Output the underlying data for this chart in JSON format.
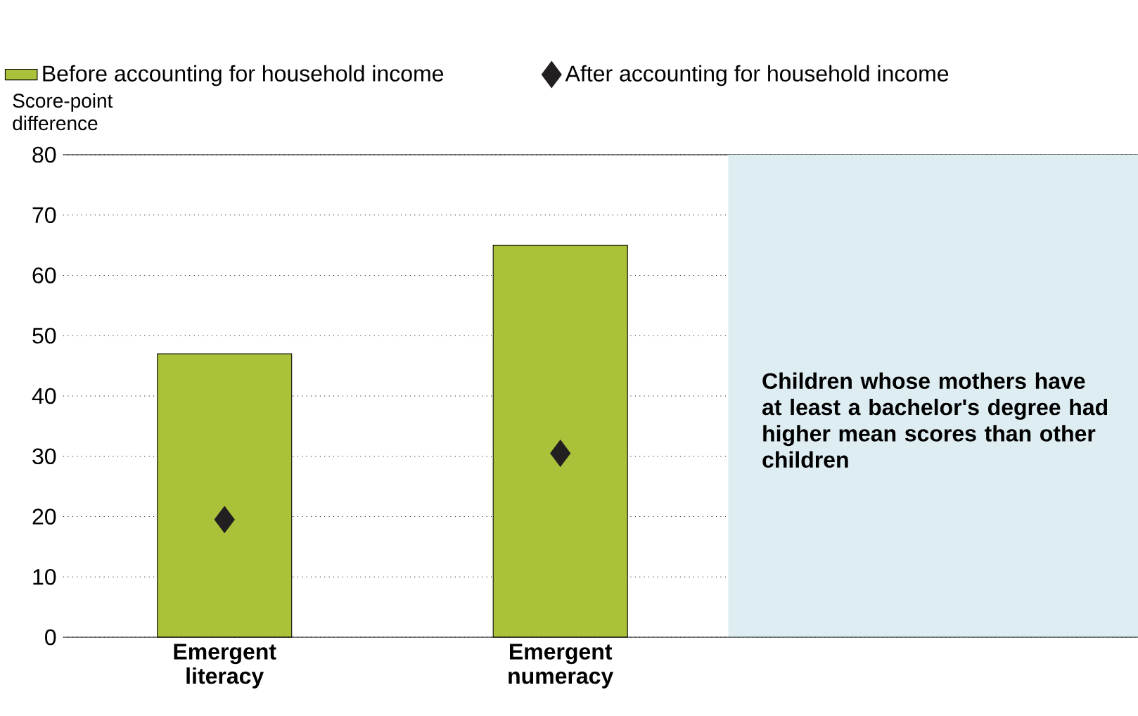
{
  "chart_data": {
    "type": "bar",
    "ylabel": "Score-point difference",
    "categories": [
      "Emergent literacy",
      "Emergent numeracy"
    ],
    "series": [
      {
        "name": "Before accounting for household income",
        "color": "#a9c23a",
        "values": [
          47,
          65
        ]
      },
      {
        "name": "After accounting for household income",
        "type": "scatter",
        "color": "#231f20",
        "values": [
          19.5,
          30.5
        ]
      }
    ],
    "ylim": [
      0,
      80
    ],
    "yticks": [
      0,
      10,
      20,
      30,
      40,
      50,
      60,
      70,
      80
    ],
    "grid": "y",
    "legend": "top",
    "marker": "diamond",
    "annotations": [
      "Children whose mothers have at least a bachelor's degree had higher mean scores than other children"
    ]
  }
}
